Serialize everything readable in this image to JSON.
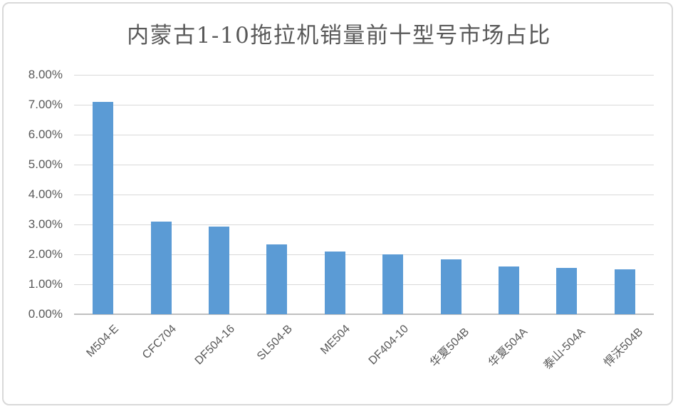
{
  "chart_data": {
    "type": "bar",
    "title": "内蒙古1-10拖拉机销量前十型号市场占比",
    "categories": [
      "M504-E",
      "CFC704",
      "DF504-16",
      "SL504-B",
      "ME504",
      "DF404-10",
      "华夏504B",
      "华夏504A",
      "泰山-504A",
      "悍沃504B"
    ],
    "values": [
      7.1,
      3.1,
      2.92,
      2.33,
      2.1,
      2.0,
      1.83,
      1.6,
      1.55,
      1.5
    ],
    "value_unit": "%",
    "xlabel": "",
    "ylabel": "",
    "ylim": [
      0,
      8
    ],
    "ytick_step": 1,
    "ytick_labels": [
      "0.00%",
      "1.00%",
      "2.00%",
      "3.00%",
      "4.00%",
      "5.00%",
      "6.00%",
      "7.00%",
      "8.00%"
    ],
    "grid": true,
    "legend_position": "none",
    "colors": {
      "bar": "#5B9BD5",
      "gridline": "#D9D9D9",
      "axis_line": "#BFBFBF",
      "text": "#595959",
      "title_text": "#595959",
      "chart_border": "#D9D9D9",
      "background": "#FFFFFF"
    }
  }
}
